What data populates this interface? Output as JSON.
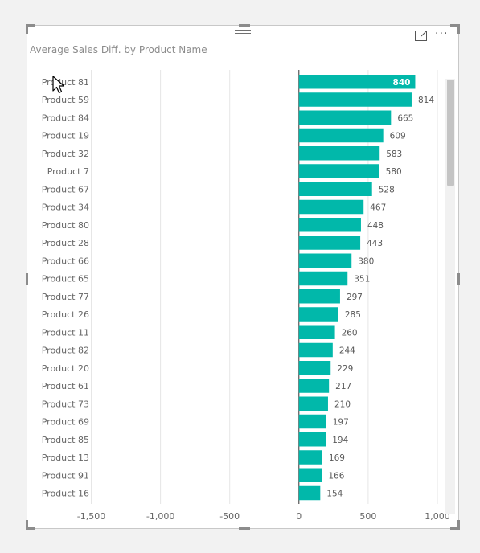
{
  "visual": {
    "title": "Average Sales Diff. by Product Name",
    "more_options_glyph": "···"
  },
  "colors": {
    "bar": "#01b8aa",
    "label_outside": "#595959",
    "label_inside": "#ffffff",
    "axis_text": "#666666",
    "gridline": "#e6e6e6",
    "zero_line": "#333333"
  },
  "chart_data": {
    "type": "bar",
    "orientation": "horizontal",
    "title": "Average Sales Diff. by Product Name",
    "categories": [
      "Product 81",
      "Product 59",
      "Product 84",
      "Product 19",
      "Product 32",
      "Product 7",
      "Product 67",
      "Product 34",
      "Product 80",
      "Product 28",
      "Product 66",
      "Product 65",
      "Product 77",
      "Product 26",
      "Product 11",
      "Product 82",
      "Product 20",
      "Product 61",
      "Product 73",
      "Product 69",
      "Product 85",
      "Product 13",
      "Product 91",
      "Product 16"
    ],
    "values": [
      840,
      814,
      665,
      609,
      583,
      580,
      528,
      467,
      448,
      443,
      380,
      351,
      297,
      285,
      260,
      244,
      229,
      217,
      210,
      197,
      194,
      169,
      166,
      154
    ],
    "x_ticks": [
      -1500,
      -1000,
      -500,
      0,
      500,
      1000
    ],
    "x_tick_labels": [
      "-1,500",
      "-1,000",
      "-500",
      "0",
      "500",
      "1,000"
    ],
    "xlim": [
      -1500,
      1000
    ],
    "grid": true,
    "data_labels": true,
    "legend": "none"
  },
  "icons": {
    "focus": "focus-mode-icon",
    "more": "more-options-icon",
    "drag": "drag-grip-icon",
    "cursor": "mouse-pointer-icon"
  }
}
